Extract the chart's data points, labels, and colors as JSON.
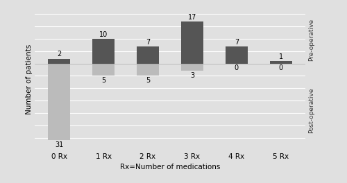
{
  "categories": [
    "0 Rx",
    "1 Rx",
    "2 Rx",
    "3 Rx",
    "4 Rx",
    "5 Rx"
  ],
  "pre_op": [
    2,
    10,
    7,
    17,
    7,
    1
  ],
  "post_op": [
    31,
    5,
    5,
    3,
    0,
    0
  ],
  "pre_op_color": "#555555",
  "post_op_color": "#bbbbbb",
  "bg_color": "#e0e0e0",
  "grid_color": "#ffffff",
  "xlabel": "Rx=Number of medications",
  "ylabel": "Number of patients",
  "ylabel_pre": "Pre-operative",
  "ylabel_post": "Post-operative",
  "ymin": -35,
  "ymax": 20,
  "bar_width": 0.5,
  "label_fontsize": 7.5,
  "annotation_fontsize": 7,
  "side_label_fontsize": 6.5
}
